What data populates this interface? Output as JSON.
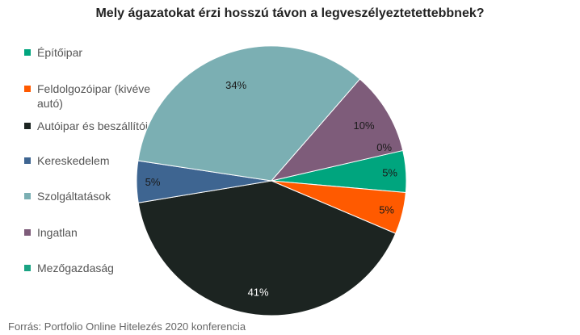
{
  "chart_data": {
    "type": "pie",
    "title": "Mely ágazatokat érzi hosszú távon a legveszélyeztetettebbnek?",
    "slices": [
      {
        "name": "Építőipar",
        "value": 5,
        "label": "5%",
        "color": "#00A57E"
      },
      {
        "name": "Feldolgozóipar (kivéve autó)",
        "value": 5,
        "label": "5%",
        "color": "#FF5A00"
      },
      {
        "name": "Autóipar és beszállítói",
        "value": 41,
        "label": "41%",
        "color": "#1C2421"
      },
      {
        "name": "Kereskedelem",
        "value": 5,
        "label": "5%",
        "color": "#3E6591"
      },
      {
        "name": "Szolgáltatások",
        "value": 34,
        "label": "34%",
        "color": "#7BAFB3"
      },
      {
        "name": "Ingatlan",
        "value": 10,
        "label": "10%",
        "color": "#7E5C7A"
      },
      {
        "name": "Mezőgazdaság",
        "value": 0,
        "label": "0%",
        "color": "#1AA383"
      }
    ],
    "legend_position": "left",
    "source": "Forrás: Portfolio Online Hitelezés 2020 konferencia"
  }
}
